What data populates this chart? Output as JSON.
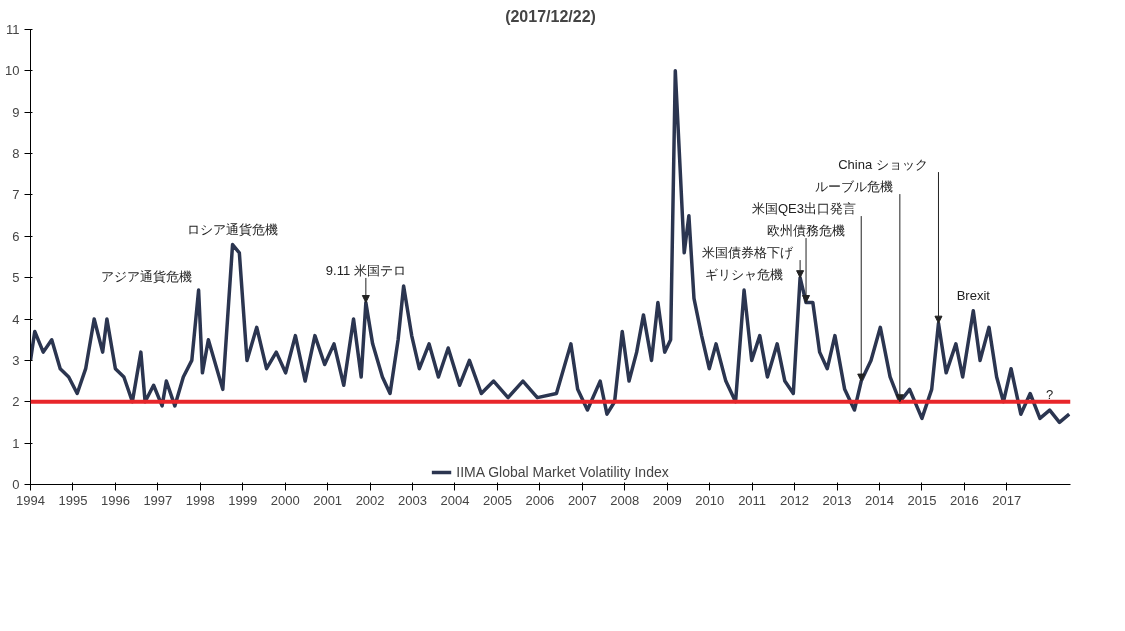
{
  "chart_data": {
    "type": "line",
    "title": "(2017/12/22)",
    "x": [
      1994.0,
      1994.1,
      1994.3,
      1994.5,
      1994.7,
      1994.9,
      1995.1,
      1995.3,
      1995.5,
      1995.7,
      1995.8,
      1996.0,
      1996.2,
      1996.4,
      1996.6,
      1996.7,
      1996.9,
      1997.1,
      1997.2,
      1997.4,
      1997.6,
      1997.8,
      1997.96,
      1998.05,
      1998.19,
      1998.53,
      1998.76,
      1998.92,
      1999.1,
      1999.33,
      1999.56,
      1999.79,
      2000.01,
      2000.24,
      2000.47,
      2000.7,
      2000.93,
      2001.15,
      2001.38,
      2001.61,
      2001.79,
      2001.9,
      2002.06,
      2002.29,
      2002.47,
      2002.66,
      2002.79,
      2002.98,
      2003.16,
      2003.39,
      2003.61,
      2003.84,
      2004.11,
      2004.34,
      2004.62,
      2004.91,
      2005.25,
      2005.6,
      2005.94,
      2006.39,
      2006.73,
      2006.89,
      2007.12,
      2007.42,
      2007.58,
      2007.76,
      2007.94,
      2008.1,
      2008.28,
      2008.44,
      2008.63,
      2008.78,
      2008.94,
      2009.08,
      2009.19,
      2009.31,
      2009.4,
      2009.51,
      2009.63,
      2009.81,
      2009.99,
      2010.15,
      2010.38,
      2010.61,
      2010.81,
      2010.99,
      2011.18,
      2011.36,
      2011.59,
      2011.77,
      2011.97,
      2012.13,
      2012.27,
      2012.43,
      2012.59,
      2012.77,
      2012.95,
      2013.18,
      2013.41,
      2013.57,
      2013.8,
      2014.02,
      2014.25,
      2014.48,
      2014.71,
      2015.0,
      2015.23,
      2015.39,
      2015.57,
      2015.8,
      2015.96,
      2016.21,
      2016.37,
      2016.58,
      2016.76,
      2016.92,
      2017.1,
      2017.33,
      2017.55,
      2017.78,
      2018.01,
      2018.24,
      2018.47
    ],
    "series": [
      {
        "name": "IIMA Global Market Volatility Index",
        "color": "#2b3550",
        "values": [
          3.0,
          3.7,
          3.2,
          3.5,
          2.8,
          2.6,
          2.2,
          2.8,
          4.0,
          3.2,
          4.0,
          2.8,
          2.6,
          2.0,
          3.2,
          2.0,
          2.4,
          1.9,
          2.5,
          1.9,
          2.6,
          3.0,
          4.7,
          2.7,
          3.5,
          2.3,
          5.8,
          5.6,
          3.0,
          3.8,
          2.8,
          3.2,
          2.7,
          3.6,
          2.5,
          3.6,
          2.9,
          3.4,
          2.4,
          4.0,
          2.6,
          4.4,
          3.4,
          2.6,
          2.2,
          3.5,
          4.8,
          3.6,
          2.8,
          3.4,
          2.6,
          3.3,
          2.4,
          3.0,
          2.2,
          2.5,
          2.1,
          2.5,
          2.1,
          2.2,
          3.4,
          2.3,
          1.8,
          2.5,
          1.7,
          2.0,
          3.7,
          2.5,
          3.2,
          4.1,
          3.0,
          4.4,
          3.2,
          3.5,
          10.0,
          7.5,
          5.6,
          6.5,
          4.5,
          3.6,
          2.8,
          3.4,
          2.5,
          2.0,
          4.7,
          3.0,
          3.6,
          2.6,
          3.4,
          2.5,
          2.2,
          5.0,
          4.4,
          4.4,
          3.2,
          2.8,
          3.6,
          2.3,
          1.8,
          2.5,
          3.0,
          3.8,
          2.6,
          2.0,
          2.3,
          1.6,
          2.3,
          3.9,
          2.7,
          3.4,
          2.6,
          4.2,
          3.0,
          3.8,
          2.6,
          2.0,
          2.8,
          1.7,
          2.2,
          1.6,
          1.8,
          1.5,
          1.7
        ]
      }
    ],
    "xlim": [
      1994,
      2018.5
    ],
    "ylim": [
      0,
      11
    ],
    "xticks": [
      1994,
      1995,
      1996,
      1997,
      1998,
      1999,
      2000,
      2001,
      2002,
      2003,
      2004,
      2005,
      2006,
      2007,
      2008,
      2009,
      2010,
      2011,
      2012,
      2013,
      2014,
      2015,
      2016,
      2017
    ],
    "yticks": [
      0,
      1,
      2,
      3,
      4,
      5,
      6,
      7,
      8,
      9,
      10,
      11
    ],
    "ref_lines": [
      {
        "axis": "y",
        "value": 2,
        "color": "#e8262a"
      }
    ],
    "annotations": [
      {
        "text": "アジア通貨危機",
        "x": 1997.96,
        "y": 4.7
      },
      {
        "text": "ロシア通貨危機",
        "x": 1998.76,
        "y": 5.8
      },
      {
        "text": "9.11 米国テロ",
        "x": 2001.9,
        "y": 4.4
      },
      {
        "text": "ギリシャ危機",
        "x": 2010.81,
        "y": 4.7
      },
      {
        "text": "米国債券格下げ",
        "x": 2012.13,
        "y": 5.0
      },
      {
        "text": "欧州債務危機",
        "x": 2012.27,
        "y": 4.4
      },
      {
        "text": "米国QE3出口発言",
        "x": 2013.57,
        "y": 2.5
      },
      {
        "text": "ルーブル危機",
        "x": 2014.48,
        "y": 2.0
      },
      {
        "text": "China ショック",
        "x": 2015.39,
        "y": 3.9
      },
      {
        "text": "Brexit",
        "x": 2016.21,
        "y": 4.2
      },
      {
        "text": "?",
        "x": 2018.01,
        "y": 1.8
      }
    ],
    "legend": "bottom",
    "grid": false,
    "marker": "none",
    "line_style": "solid"
  }
}
